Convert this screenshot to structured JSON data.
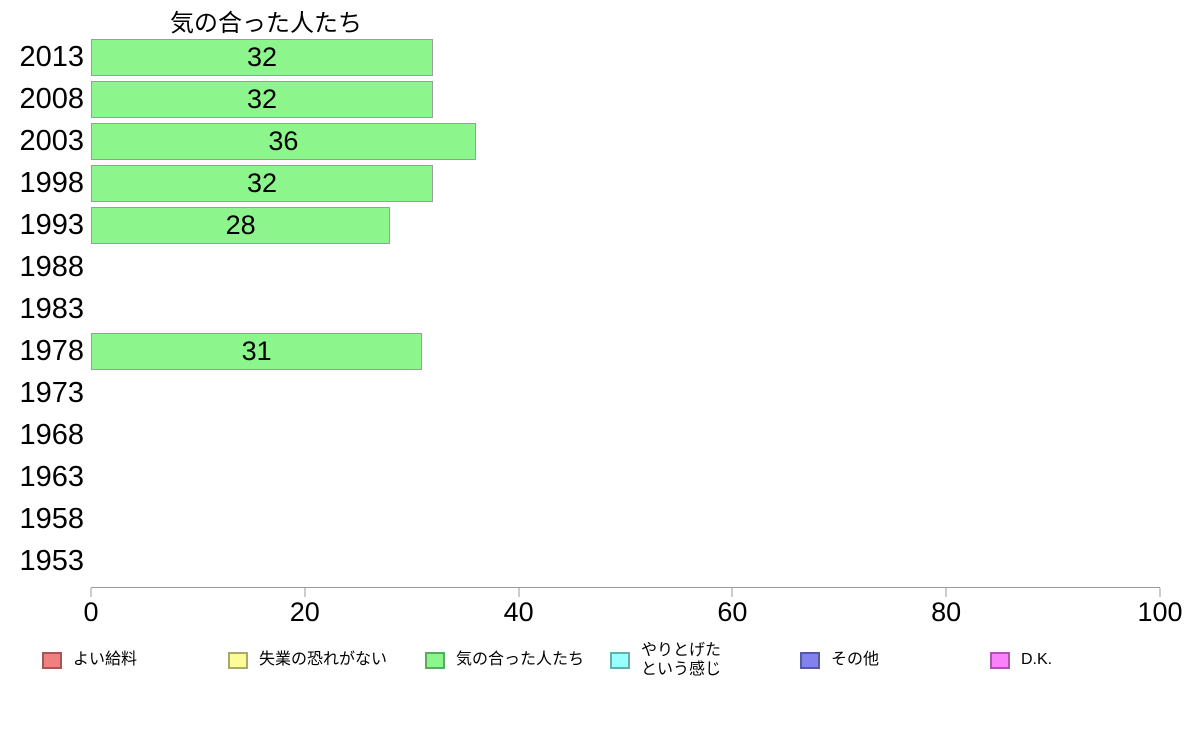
{
  "chart_data": {
    "type": "bar",
    "orientation": "horizontal",
    "title": "気の合った人たち",
    "categories": [
      "2013",
      "2008",
      "2003",
      "1998",
      "1993",
      "1988",
      "1983",
      "1978",
      "1973",
      "1968",
      "1963",
      "1958",
      "1953"
    ],
    "series": [
      {
        "name": "気の合った人たち",
        "color": "#8CF58C",
        "border_color": "#9C9C9C",
        "values": [
          32,
          32,
          36,
          32,
          28,
          null,
          null,
          31,
          null,
          null,
          null,
          null,
          null
        ]
      }
    ],
    "xlabel": "",
    "ylabel": "",
    "xlim": [
      0,
      100
    ],
    "x_ticks": [
      0,
      20,
      40,
      60,
      80,
      100
    ],
    "grid": false,
    "value_labels_shown": true,
    "legend_position": "bottom",
    "legend": [
      {
        "label": "よい給料",
        "color": "#F08080"
      },
      {
        "label": "失業の恐れがない",
        "color": "#FBFB98"
      },
      {
        "label": "気の合った人たち",
        "color": "#8CF58C"
      },
      {
        "label": "やりとげた\nという感じ",
        "color": "#99FFFF"
      },
      {
        "label": "その他",
        "color": "#8282EC"
      },
      {
        "label": "D.K.",
        "color": "#F981F9"
      }
    ],
    "colors": {
      "axis": "#999999",
      "text": "#000000",
      "background": "#FFFFFF"
    }
  }
}
